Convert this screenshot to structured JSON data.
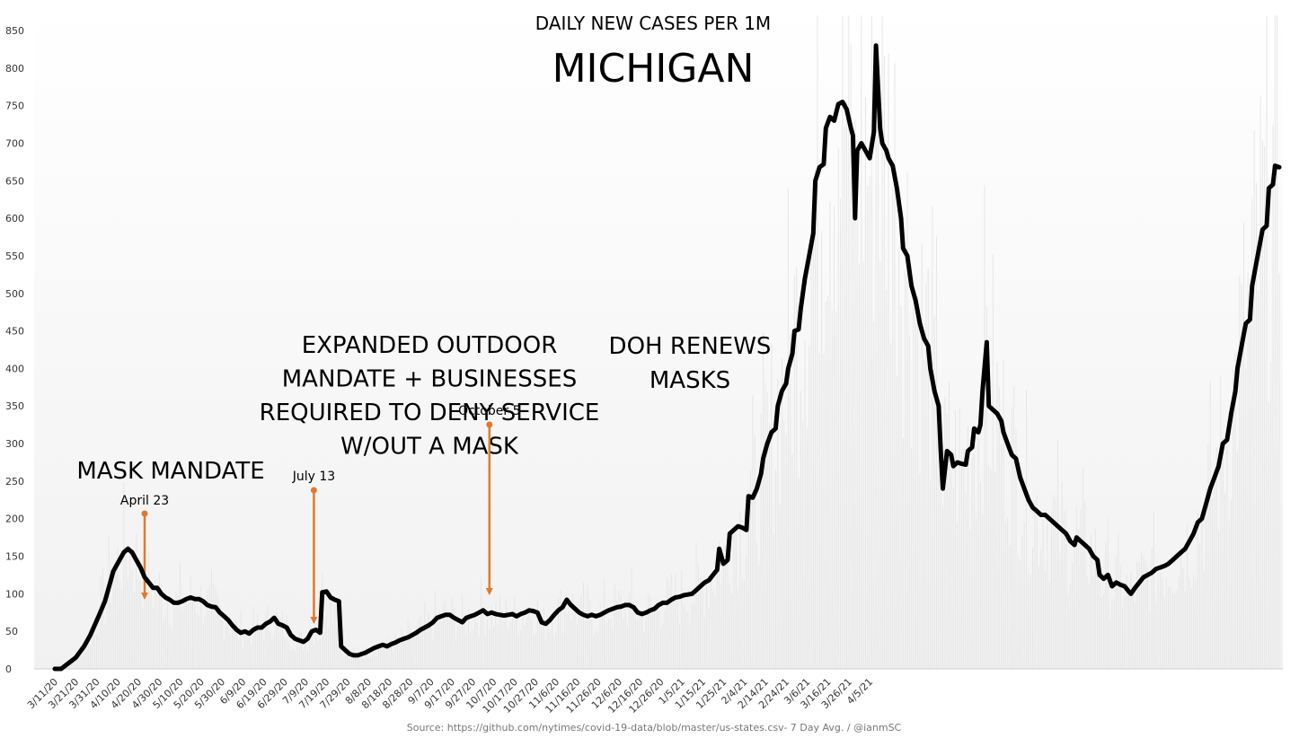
{
  "chart_data": {
    "type": "line",
    "title": "DAILY NEW CASES PER 1M",
    "subtitle": "MICHIGAN",
    "source": "Source: https://github.com/nytimes/covid-19-data/blob/master/us-states.csv- 7 Day Avg. / @ianmSC",
    "ylim": [
      0,
      850
    ],
    "yticks": [
      "0",
      "50",
      "100",
      "150",
      "200",
      "250",
      "300",
      "350",
      "400",
      "450",
      "500",
      "550",
      "600",
      "650",
      "700",
      "750",
      "800",
      "850"
    ],
    "xticks": [
      "3/11/20",
      "3/21/20",
      "3/31/20",
      "4/10/20",
      "4/20/20",
      "4/30/20",
      "5/10/20",
      "5/20/20",
      "5/30/20",
      "6/9/20",
      "6/19/20",
      "6/29/20",
      "7/9/20",
      "7/19/20",
      "7/29/20",
      "8/8/20",
      "8/18/20",
      "8/28/20",
      "9/7/20",
      "9/17/20",
      "9/27/20",
      "10/7/20",
      "10/17/20",
      "10/27/20",
      "11/6/20",
      "11/16/20",
      "11/26/20",
      "12/6/20",
      "12/16/20",
      "12/26/20",
      "1/5/21",
      "1/15/21",
      "1/25/21",
      "2/4/21",
      "2/14/21",
      "2/24/21",
      "3/6/21",
      "3/16/21",
      "3/26/21",
      "4/5/21"
    ],
    "grid": false,
    "legend": "none",
    "line_color": "#000000",
    "annotation_color": "#e07a2e",
    "series": [
      {
        "values": [
          [
            0,
            0
          ],
          [
            3,
            0
          ],
          [
            10,
            15
          ],
          [
            14,
            30
          ],
          [
            17,
            45
          ],
          [
            21,
            70
          ],
          [
            24,
            90
          ],
          [
            26,
            110
          ],
          [
            28,
            130
          ],
          [
            31,
            145
          ],
          [
            33,
            155
          ],
          [
            35,
            160
          ],
          [
            37,
            155
          ],
          [
            39,
            145
          ],
          [
            41,
            135
          ],
          [
            43,
            122
          ],
          [
            45,
            115
          ],
          [
            47,
            108
          ],
          [
            49,
            108
          ],
          [
            51,
            100
          ],
          [
            53,
            95
          ],
          [
            55,
            92
          ],
          [
            57,
            88
          ],
          [
            59,
            88
          ],
          [
            61,
            90
          ],
          [
            63,
            93
          ],
          [
            65,
            95
          ],
          [
            67,
            93
          ],
          [
            69,
            93
          ],
          [
            71,
            90
          ],
          [
            73,
            85
          ],
          [
            75,
            83
          ],
          [
            77,
            82
          ],
          [
            79,
            75
          ],
          [
            81,
            70
          ],
          [
            83,
            65
          ],
          [
            85,
            58
          ],
          [
            87,
            52
          ],
          [
            89,
            48
          ],
          [
            91,
            50
          ],
          [
            93,
            47
          ],
          [
            95,
            52
          ],
          [
            97,
            55
          ],
          [
            99,
            55
          ],
          [
            101,
            60
          ],
          [
            103,
            63
          ],
          [
            105,
            68
          ],
          [
            107,
            60
          ],
          [
            109,
            58
          ],
          [
            111,
            55
          ],
          [
            113,
            45
          ],
          [
            115,
            40
          ],
          [
            117,
            38
          ],
          [
            119,
            36
          ],
          [
            121,
            40
          ],
          [
            123,
            50
          ],
          [
            125,
            52
          ],
          [
            127,
            48
          ],
          [
            128,
            102
          ],
          [
            130,
            103
          ],
          [
            132,
            95
          ],
          [
            134,
            92
          ],
          [
            136,
            90
          ],
          [
            137,
            30
          ],
          [
            139,
            25
          ],
          [
            141,
            20
          ],
          [
            143,
            18
          ],
          [
            145,
            18
          ],
          [
            147,
            20
          ],
          [
            149,
            22
          ],
          [
            151,
            25
          ],
          [
            153,
            28
          ],
          [
            155,
            30
          ],
          [
            157,
            32
          ],
          [
            159,
            30
          ],
          [
            161,
            33
          ],
          [
            163,
            35
          ],
          [
            165,
            38
          ],
          [
            167,
            40
          ],
          [
            169,
            42
          ],
          [
            171,
            45
          ],
          [
            173,
            48
          ],
          [
            175,
            52
          ],
          [
            177,
            55
          ],
          [
            179,
            58
          ],
          [
            181,
            62
          ],
          [
            183,
            68
          ],
          [
            185,
            70
          ],
          [
            187,
            72
          ],
          [
            189,
            72
          ],
          [
            191,
            68
          ],
          [
            193,
            65
          ],
          [
            195,
            62
          ],
          [
            197,
            68
          ],
          [
            199,
            70
          ],
          [
            201,
            72
          ],
          [
            203,
            75
          ],
          [
            205,
            78
          ],
          [
            207,
            73
          ],
          [
            209,
            75
          ],
          [
            211,
            73
          ],
          [
            213,
            72
          ],
          [
            215,
            71
          ],
          [
            217,
            72
          ],
          [
            219,
            73
          ],
          [
            221,
            70
          ],
          [
            223,
            73
          ],
          [
            225,
            75
          ],
          [
            227,
            78
          ],
          [
            229,
            77
          ],
          [
            231,
            75
          ],
          [
            233,
            62
          ],
          [
            235,
            60
          ],
          [
            237,
            65
          ],
          [
            239,
            72
          ],
          [
            241,
            78
          ],
          [
            243,
            82
          ],
          [
            245,
            92
          ],
          [
            247,
            85
          ],
          [
            249,
            80
          ],
          [
            251,
            75
          ],
          [
            253,
            72
          ],
          [
            255,
            70
          ],
          [
            257,
            72
          ],
          [
            259,
            70
          ],
          [
            261,
            72
          ],
          [
            263,
            75
          ],
          [
            265,
            78
          ],
          [
            267,
            80
          ],
          [
            269,
            82
          ],
          [
            271,
            83
          ],
          [
            273,
            85
          ],
          [
            275,
            85
          ],
          [
            277,
            82
          ],
          [
            279,
            75
          ],
          [
            281,
            73
          ],
          [
            283,
            75
          ],
          [
            285,
            78
          ],
          [
            287,
            80
          ],
          [
            289,
            85
          ],
          [
            291,
            88
          ],
          [
            293,
            88
          ],
          [
            295,
            92
          ],
          [
            297,
            95
          ],
          [
            299,
            96
          ],
          [
            301,
            98
          ],
          [
            303,
            99
          ],
          [
            305,
            100
          ],
          [
            307,
            105
          ],
          [
            309,
            110
          ],
          [
            311,
            115
          ],
          [
            313,
            118
          ],
          [
            315,
            125
          ],
          [
            317,
            132
          ],
          [
            318,
            160
          ],
          [
            320,
            140
          ],
          [
            322,
            145
          ],
          [
            323,
            180
          ],
          [
            325,
            185
          ],
          [
            327,
            190
          ],
          [
            329,
            188
          ],
          [
            331,
            185
          ],
          [
            332,
            230
          ],
          [
            334,
            228
          ],
          [
            336,
            240
          ],
          [
            338,
            260
          ],
          [
            339,
            280
          ],
          [
            341,
            300
          ],
          [
            343,
            315
          ],
          [
            345,
            320
          ],
          [
            346,
            350
          ],
          [
            348,
            370
          ],
          [
            350,
            380
          ],
          [
            351,
            400
          ],
          [
            353,
            420
          ],
          [
            354,
            450
          ],
          [
            356,
            452
          ],
          [
            357,
            480
          ],
          [
            359,
            520
          ],
          [
            361,
            550
          ],
          [
            363,
            580
          ],
          [
            364,
            650
          ],
          [
            366,
            668
          ],
          [
            368,
            672
          ],
          [
            369,
            720
          ],
          [
            371,
            735
          ],
          [
            373,
            730
          ],
          [
            375,
            752
          ],
          [
            377,
            755
          ],
          [
            379,
            745
          ],
          [
            381,
            720
          ],
          [
            382,
            710
          ],
          [
            383,
            600
          ],
          [
            384,
            690
          ],
          [
            386,
            700
          ],
          [
            388,
            690
          ],
          [
            390,
            680
          ],
          [
            392,
            715
          ],
          [
            393,
            830
          ],
          [
            395,
            720
          ],
          [
            396,
            700
          ],
          [
            398,
            690
          ],
          [
            399,
            680
          ],
          [
            401,
            670
          ],
          [
            403,
            640
          ],
          [
            405,
            600
          ],
          [
            406,
            560
          ],
          [
            408,
            550
          ],
          [
            410,
            510
          ],
          [
            412,
            490
          ],
          [
            414,
            460
          ],
          [
            416,
            440
          ],
          [
            418,
            430
          ],
          [
            419,
            400
          ],
          [
            421,
            370
          ],
          [
            423,
            350
          ],
          [
            424,
            290
          ],
          [
            425,
            240
          ],
          [
            427,
            290
          ],
          [
            429,
            285
          ],
          [
            430,
            270
          ],
          [
            432,
            275
          ],
          [
            434,
            273
          ],
          [
            436,
            272
          ],
          [
            437,
            290
          ],
          [
            439,
            295
          ],
          [
            440,
            320
          ],
          [
            442,
            315
          ],
          [
            443,
            325
          ],
          [
            444,
            370
          ],
          [
            446,
            435
          ],
          [
            447,
            350
          ],
          [
            449,
            345
          ],
          [
            451,
            340
          ],
          [
            453,
            330
          ],
          [
            454,
            315
          ],
          [
            456,
            300
          ],
          [
            458,
            285
          ],
          [
            460,
            280
          ],
          [
            462,
            255
          ],
          [
            464,
            240
          ],
          [
            466,
            225
          ],
          [
            468,
            215
          ],
          [
            470,
            210
          ],
          [
            472,
            205
          ],
          [
            474,
            205
          ],
          [
            476,
            200
          ],
          [
            478,
            195
          ],
          [
            480,
            190
          ],
          [
            482,
            185
          ],
          [
            484,
            180
          ],
          [
            486,
            170
          ],
          [
            488,
            165
          ],
          [
            489,
            175
          ],
          [
            491,
            170
          ],
          [
            493,
            165
          ],
          [
            495,
            160
          ],
          [
            497,
            150
          ],
          [
            499,
            145
          ],
          [
            500,
            125
          ],
          [
            502,
            120
          ],
          [
            504,
            125
          ],
          [
            506,
            110
          ],
          [
            508,
            115
          ],
          [
            510,
            112
          ],
          [
            512,
            110
          ],
          [
            514,
            103
          ],
          [
            515,
            100
          ],
          [
            517,
            108
          ],
          [
            519,
            115
          ],
          [
            521,
            122
          ],
          [
            523,
            125
          ],
          [
            525,
            128
          ],
          [
            527,
            133
          ],
          [
            529,
            135
          ],
          [
            531,
            137
          ],
          [
            533,
            140
          ],
          [
            535,
            145
          ],
          [
            537,
            150
          ],
          [
            539,
            155
          ],
          [
            541,
            160
          ],
          [
            543,
            170
          ],
          [
            545,
            180
          ],
          [
            547,
            195
          ],
          [
            549,
            200
          ],
          [
            551,
            220
          ],
          [
            553,
            240
          ],
          [
            555,
            255
          ],
          [
            557,
            270
          ],
          [
            559,
            300
          ],
          [
            561,
            305
          ],
          [
            563,
            340
          ],
          [
            565,
            370
          ],
          [
            566,
            400
          ],
          [
            568,
            430
          ],
          [
            570,
            460
          ],
          [
            572,
            465
          ],
          [
            573,
            510
          ],
          [
            575,
            540
          ],
          [
            577,
            570
          ],
          [
            578,
            585
          ],
          [
            580,
            590
          ],
          [
            581,
            640
          ],
          [
            583,
            645
          ],
          [
            584,
            670
          ],
          [
            586,
            668
          ]
        ]
      }
    ],
    "annotations": [
      {
        "label": "MASK MANDATE",
        "date": "April 23",
        "day": 43
      },
      {
        "label_lines": [
          "EXPANDED OUTDOOR",
          "MANDATE + BUSINESSES",
          "REQUIRED TO DENY SERVICE",
          "W/OUT A MASK"
        ],
        "date": "July 13",
        "day": 124
      },
      {
        "label_lines": [
          "DOH RENEWS",
          "MASKS"
        ],
        "date": "October 5",
        "day": 208
      }
    ]
  }
}
